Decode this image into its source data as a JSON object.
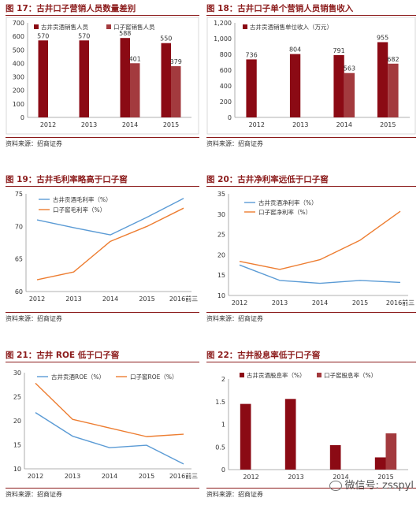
{
  "panels": [
    {
      "id": "p17",
      "title": "图 17：古井口子营销人员数量差别",
      "source": "资料来源：招商证券",
      "chart_data": {
        "type": "bar",
        "categories": [
          "2012",
          "2013",
          "2014",
          "2015"
        ],
        "ylim": [
          0,
          700
        ],
        "yticks": [
          0,
          100,
          200,
          300,
          400,
          500,
          600,
          700
        ],
        "legend_position": "top",
        "grid": false,
        "series": [
          {
            "name": "古井贡酒销售人员",
            "values": [
              570,
              570,
              588,
              550
            ],
            "color": "#8b0a14"
          },
          {
            "name": "口子窖销售人员",
            "values": [
              null,
              null,
              401,
              379
            ],
            "color": "#a33a3e"
          }
        ]
      }
    },
    {
      "id": "p18",
      "title": "图 18：古井口子单个营销人员销售收入",
      "source": "资料来源：招商证券",
      "chart_data": {
        "type": "bar",
        "categories": [
          "2012",
          "2013",
          "2014",
          "2015"
        ],
        "ylim": [
          0,
          1200
        ],
        "yticks": [
          0,
          200,
          400,
          600,
          800,
          1000,
          1200
        ],
        "ytick_labels": [
          "0",
          "200",
          "400",
          "600",
          "800",
          "1,000",
          "1,200"
        ],
        "legend_position": "top",
        "grid": false,
        "series": [
          {
            "name": "古井贡酒销售单位收入（万元）",
            "values": [
              736,
              804,
              791,
              955
            ],
            "color": "#8b0a14"
          },
          {
            "name": "",
            "values": [
              null,
              null,
              563,
              682
            ],
            "color": "#a33a3e"
          }
        ]
      }
    },
    {
      "id": "p19",
      "title": "图 19：古井毛利率略高于口子窖",
      "source": "资料来源：招商证券",
      "chart_data": {
        "type": "line",
        "categories": [
          "2012",
          "2013",
          "2014",
          "2015",
          "2016前三"
        ],
        "ylim": [
          60,
          75
        ],
        "yticks": [
          60,
          65,
          70,
          75
        ],
        "legend_position": "top-left",
        "grid": false,
        "series": [
          {
            "name": "古井贡酒毛利率（%）",
            "values": [
              71.0,
              69.8,
              68.7,
              71.4,
              74.3
            ],
            "color": "#5b9bd5"
          },
          {
            "name": "口子窖毛利率（%）",
            "values": [
              61.8,
              63.0,
              67.7,
              70.0,
              72.8
            ],
            "color": "#ed7d31"
          }
        ]
      }
    },
    {
      "id": "p20",
      "title": "图 20：古井净利率远低于口子窖",
      "source": "资料来源：招商证券",
      "chart_data": {
        "type": "line",
        "categories": [
          "2012",
          "2013",
          "2014",
          "2015",
          "2016前三"
        ],
        "ylim": [
          10,
          35
        ],
        "yticks": [
          10,
          15,
          20,
          25,
          30,
          35
        ],
        "legend_position": "top-left",
        "grid": false,
        "series": [
          {
            "name": "古井贡酒净利率（%）",
            "values": [
              17.5,
              13.7,
              13.0,
              13.7,
              13.2
            ],
            "color": "#5b9bd5"
          },
          {
            "name": "口子窖净利率（%）",
            "values": [
              18.4,
              16.4,
              18.8,
              23.6,
              30.7
            ],
            "color": "#ed7d31"
          }
        ]
      }
    },
    {
      "id": "p21",
      "title": "图 21：古井 ROE 低于口子窖",
      "source": "资料来源：招商证券",
      "chart_data": {
        "type": "line",
        "categories": [
          "2012",
          "2013",
          "2014",
          "2015",
          "2016前三"
        ],
        "ylim": [
          10,
          30
        ],
        "yticks": [
          10,
          15,
          20,
          25,
          30
        ],
        "legend_position": "top",
        "grid": false,
        "series": [
          {
            "name": "古井贡酒ROE（%）",
            "values": [
              21.7,
              16.8,
              14.4,
              14.9,
              11.0
            ],
            "color": "#5b9bd5"
          },
          {
            "name": "口子窖ROE（%）",
            "values": [
              27.8,
              20.3,
              18.5,
              16.7,
              17.2
            ],
            "color": "#ed7d31"
          }
        ]
      }
    },
    {
      "id": "p22",
      "title": "图 22：古井股息率低于口子窖",
      "source": "资料来源：招商证券",
      "chart_data": {
        "type": "bar",
        "categories": [
          "2012",
          "2013",
          "2014",
          "2015"
        ],
        "ylim": [
          0,
          2
        ],
        "yticks": [
          0,
          0.5,
          1,
          1.5,
          2
        ],
        "ytick_labels": [
          "0",
          "0.5",
          "1",
          "1.5",
          "2"
        ],
        "legend_position": "top",
        "grid": false,
        "series": [
          {
            "name": "古井贡酒股息率（%）",
            "values": [
              1.45,
              1.56,
              0.54,
              0.27
            ],
            "color": "#8b0a14"
          },
          {
            "name": "口子窖股息率（%）",
            "values": [
              null,
              null,
              null,
              0.8
            ],
            "color": "#a33a3e"
          }
        ]
      }
    }
  ],
  "watermark": {
    "text": "微信号: zsspyl",
    "icon": "wechat-icon"
  }
}
